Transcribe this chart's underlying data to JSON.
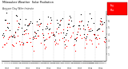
{
  "title": "Milwaukee Weather  Solar Radiation",
  "subtitle": "Avg per Day W/m²/minute",
  "bg_color": "#ffffff",
  "plot_bg": "#ffffff",
  "grid_color": "#c8c8c8",
  "ylim": [
    0,
    750
  ],
  "ytick_vals": [
    100,
    200,
    300,
    400,
    500,
    600,
    700
  ],
  "ytick_labels": [
    "1",
    "2",
    "3",
    "4",
    "5",
    "6",
    "7"
  ],
  "dot_size": 0.8,
  "red_color": "#ff0000",
  "black_color": "#000000",
  "n_years": 10,
  "seed": 42
}
